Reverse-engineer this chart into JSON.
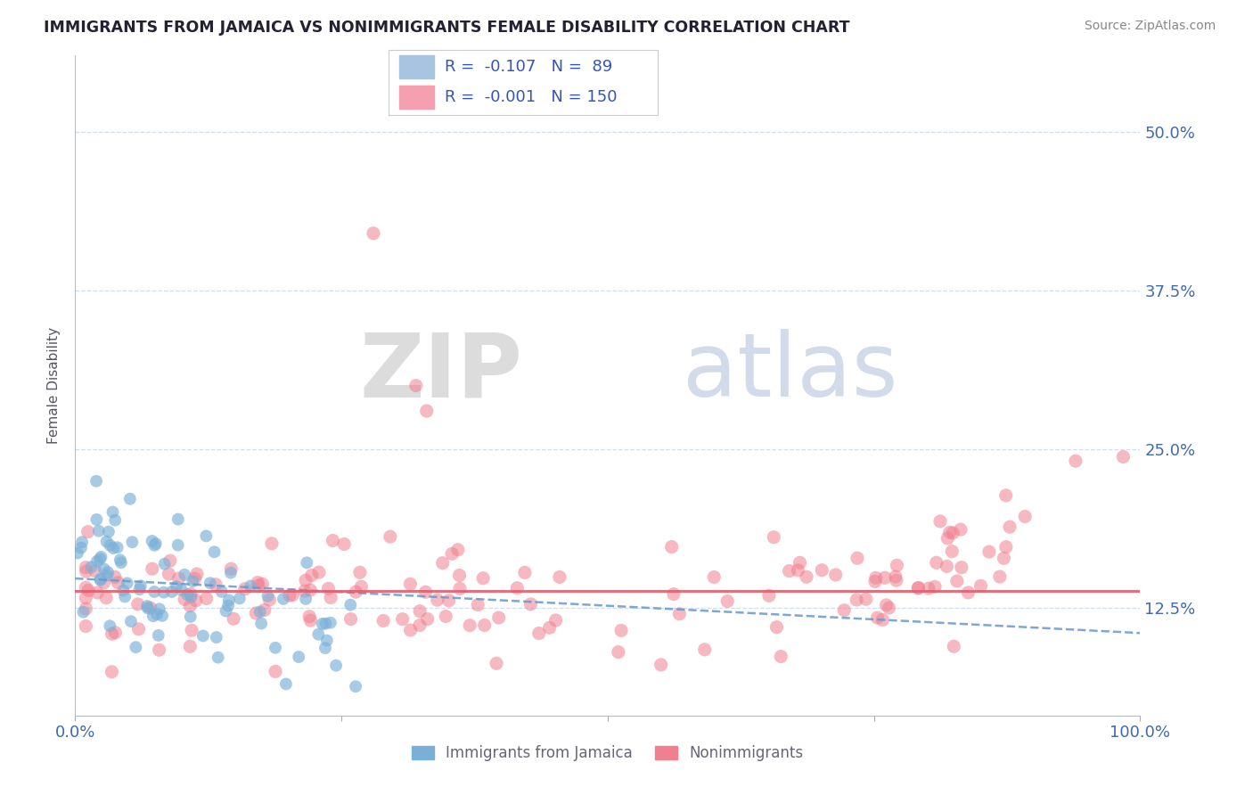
{
  "title": "IMMIGRANTS FROM JAMAICA VS NONIMMIGRANTS FEMALE DISABILITY CORRELATION CHART",
  "source": "Source: ZipAtlas.com",
  "ylabel": "Female Disability",
  "series1_label": "Immigrants from Jamaica",
  "series2_label": "Nonimmigrants",
  "series1_color": "#7ab0d8",
  "series2_color": "#f08090",
  "series1_legend_color": "#a8c4e0",
  "series2_legend_color": "#f4a0b0",
  "series1_R": -0.107,
  "series1_N": 89,
  "series2_R": -0.001,
  "series2_N": 150,
  "xmin": 0.0,
  "xmax": 1.0,
  "ymin": 0.04,
  "ymax": 0.56,
  "yticks": [
    0.125,
    0.25,
    0.375,
    0.5
  ],
  "ytick_labels": [
    "12.5%",
    "25.0%",
    "37.5%",
    "50.0%"
  ],
  "xticks": [
    0.0,
    0.25,
    0.5,
    0.75,
    1.0
  ],
  "xtick_labels": [
    "0.0%",
    "",
    "",
    "",
    "100.0%"
  ],
  "title_color": "#222233",
  "tick_color": "#4169b0",
  "grid_color": "#d0dff0",
  "watermark_zip": "ZIP",
  "watermark_atlas": "atlas",
  "background_color": "#ffffff",
  "series1_trend_color": "#6699cc",
  "series2_trend_color": "#e06070",
  "legend_text_color": "#3355bb",
  "bottom_legend_color": "#666677"
}
